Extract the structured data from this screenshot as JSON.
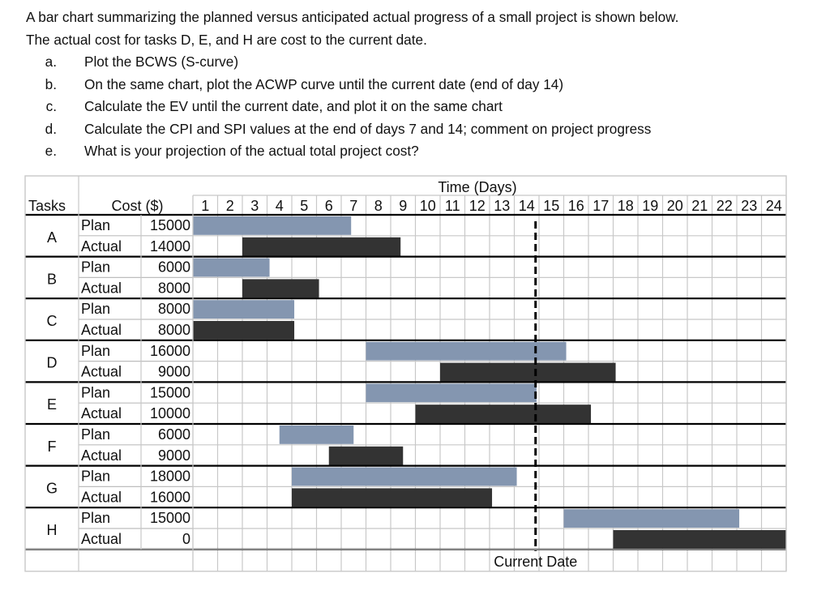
{
  "intro": {
    "line1": "A bar chart summarizing the planned versus anticipated actual progress of a small project is shown below.",
    "line2": "The actual cost for tasks D, E, and H are cost to the current date.",
    "questions": [
      {
        "letter": "a.",
        "text": "Plot the BCWS (S-curve)"
      },
      {
        "letter": "b.",
        "text": "On the same chart, plot the ACWP curve until the current date (end of day 14)"
      },
      {
        "letter": "c.",
        "text": "Calculate the EV until the current date, and plot it on the same chart"
      },
      {
        "letter": "d.",
        "text": "Calculate the CPI and SPI values at the end of days 7 and 14; comment on project progress"
      },
      {
        "letter": "e.",
        "text": "What is your projection of the actual total project cost?"
      }
    ]
  },
  "chart_data": {
    "type": "gantt",
    "header": {
      "time_label": "Time (Days)",
      "tasks_label": "Tasks",
      "cost_label": "Cost ($)"
    },
    "days": [
      "1",
      "2",
      "3",
      "4",
      "5",
      "6",
      "7",
      "8",
      "9",
      "10",
      "11",
      "12",
      "13",
      "14",
      "15",
      "16",
      "17",
      "18",
      "19",
      "20",
      "21",
      "22",
      "23",
      "24"
    ],
    "plan_label": "Plan",
    "actual_label": "Actual",
    "current_date": {
      "day": 14,
      "label": "Current Date"
    },
    "colors": {
      "plan": "#8496b0",
      "actual": "#333333"
    },
    "tasks": [
      {
        "name": "A",
        "plan": {
          "cost": "15000",
          "start": 1,
          "end": 7.4
        },
        "actual": {
          "cost": "14000",
          "start": 3,
          "end": 9.4
        }
      },
      {
        "name": "B",
        "plan": {
          "cost": "6000",
          "start": 1,
          "end": 4.1
        },
        "actual": {
          "cost": "8000",
          "start": 3,
          "end": 6.1
        }
      },
      {
        "name": "C",
        "plan": {
          "cost": "8000",
          "start": 1,
          "end": 5.1
        },
        "actual": {
          "cost": "8000",
          "start": 1,
          "end": 5.1
        }
      },
      {
        "name": "D",
        "plan": {
          "cost": "16000",
          "start": 8,
          "end": 16.1
        },
        "actual": {
          "cost": "9000",
          "start": 11,
          "end": 18.1
        }
      },
      {
        "name": "E",
        "plan": {
          "cost": "15000",
          "start": 8,
          "end": 14.9
        },
        "actual": {
          "cost": "10000",
          "start": 10,
          "end": 17.1
        }
      },
      {
        "name": "F",
        "plan": {
          "cost": "6000",
          "start": 4.5,
          "end": 7.5
        },
        "actual": {
          "cost": "9000",
          "start": 6.5,
          "end": 9.5
        }
      },
      {
        "name": "G",
        "plan": {
          "cost": "18000",
          "start": 5,
          "end": 14.1
        },
        "actual": {
          "cost": "16000",
          "start": 5,
          "end": 13.1
        }
      },
      {
        "name": "H",
        "plan": {
          "cost": "15000",
          "start": 16,
          "end": 23.1
        },
        "actual": {
          "cost": "0",
          "start": 18,
          "end": 25
        }
      }
    ]
  }
}
